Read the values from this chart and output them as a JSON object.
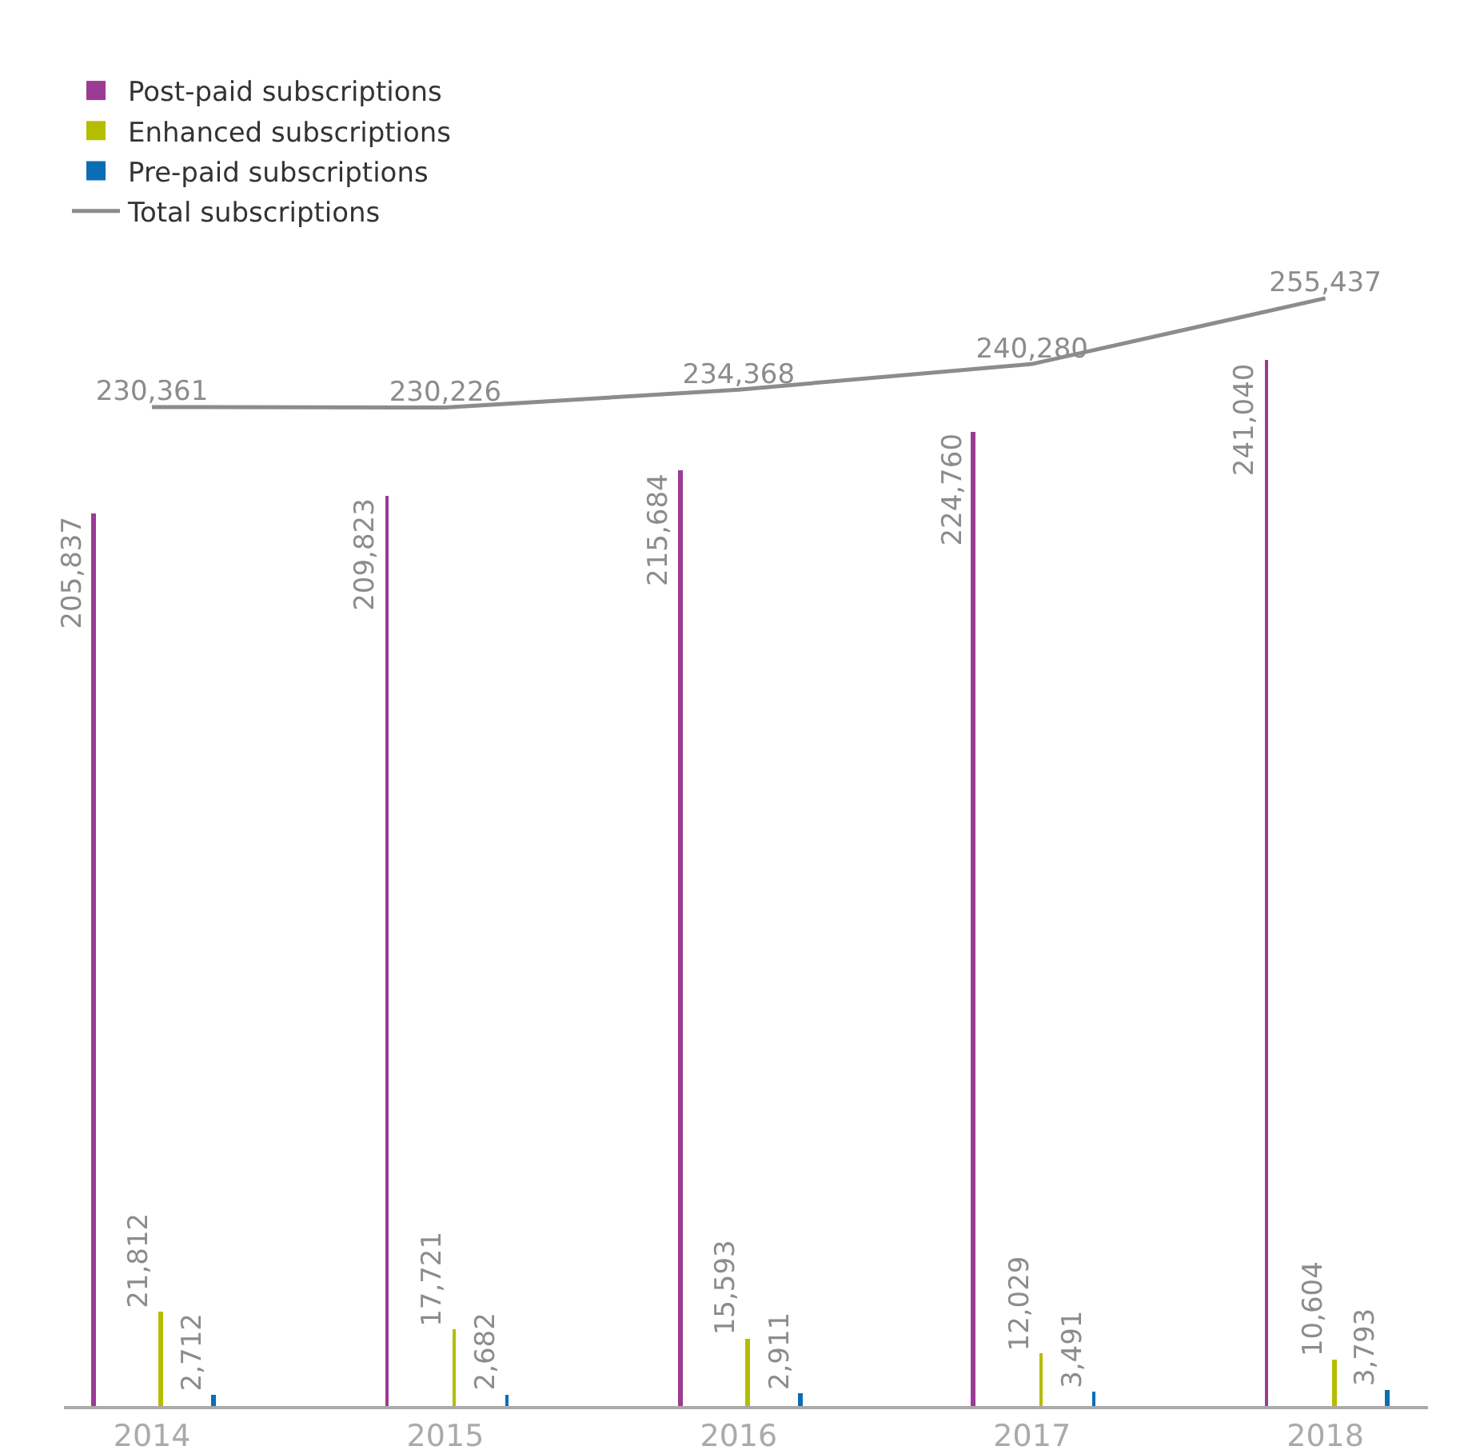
{
  "chart_data": {
    "type": "bar",
    "categories": [
      "2014",
      "2015",
      "2016",
      "2017",
      "2018"
    ],
    "series": [
      {
        "name": "Post-paid subscriptions",
        "color": "#9b3b94",
        "values": [
          205837,
          209823,
          215684,
          224760,
          241040
        ],
        "value_labels": [
          "205,837",
          "209,823",
          "215,684",
          "224,760",
          "241,040"
        ]
      },
      {
        "name": "Enhanced subscriptions",
        "color": "#b5bd00",
        "values": [
          21812,
          17721,
          15593,
          12029,
          10604
        ],
        "value_labels": [
          "21,812",
          "17,721",
          "15,593",
          "12,029",
          "10,604"
        ]
      },
      {
        "name": "Pre-paid subscriptions",
        "color": "#0a6eb4",
        "values": [
          2712,
          2682,
          2911,
          3491,
          3793
        ],
        "value_labels": [
          "2,712",
          "2,682",
          "2,911",
          "3,491",
          "3,793"
        ]
      },
      {
        "name": "Total subscriptions",
        "color": "#8c8c8c",
        "type": "line",
        "values": [
          230361,
          230226,
          234368,
          240280,
          255437
        ],
        "value_labels": [
          "230,361",
          "230,226",
          "234,368",
          "240,280",
          "255,437"
        ]
      }
    ],
    "legend": "top left"
  }
}
